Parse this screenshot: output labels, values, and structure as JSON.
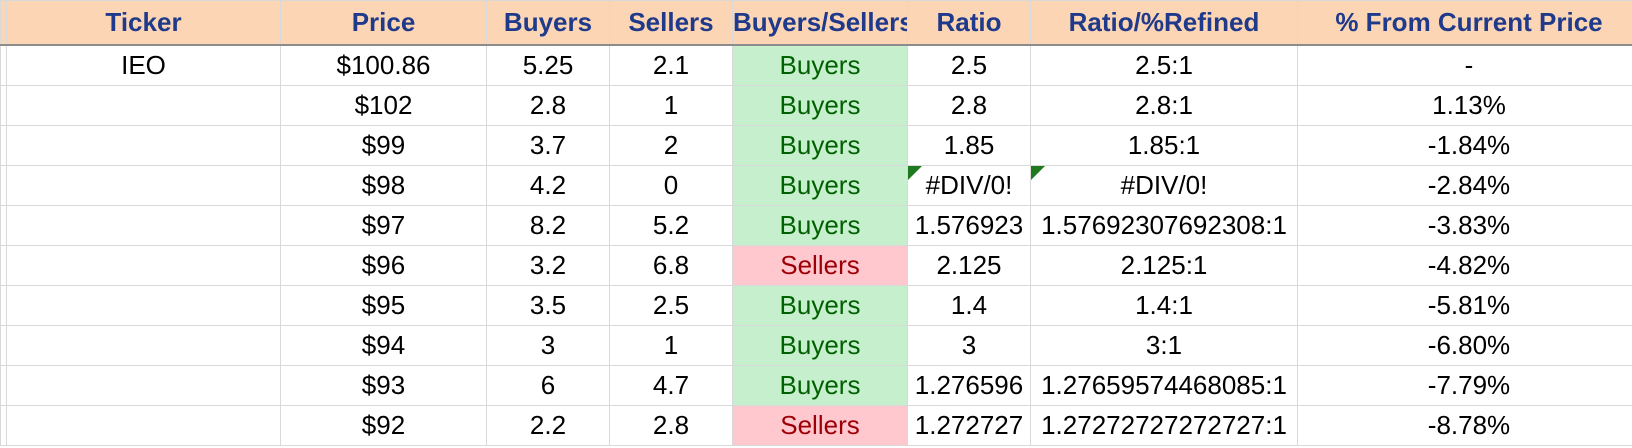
{
  "headers": [
    "Ticker",
    "Price",
    "Buyers",
    "Sellers",
    "Buyers/Sellers",
    "Ratio",
    "Ratio/%Refined",
    "% From Current Price"
  ],
  "rows": [
    {
      "ticker": "IEO",
      "price": "$100.86",
      "buyers": "5.25",
      "sellers": "2.1",
      "side": "Buyers",
      "ratio": "2.5",
      "refined": "2.5:1",
      "pct": "-",
      "error": false
    },
    {
      "ticker": "",
      "price": "$102",
      "buyers": "2.8",
      "sellers": "1",
      "side": "Buyers",
      "ratio": "2.8",
      "refined": "2.8:1",
      "pct": "1.13%",
      "error": false
    },
    {
      "ticker": "",
      "price": "$99",
      "buyers": "3.7",
      "sellers": "2",
      "side": "Buyers",
      "ratio": "1.85",
      "refined": "1.85:1",
      "pct": "-1.84%",
      "error": false
    },
    {
      "ticker": "",
      "price": "$98",
      "buyers": "4.2",
      "sellers": "0",
      "side": "Buyers",
      "ratio": "#DIV/0!",
      "refined": "#DIV/0!",
      "pct": "-2.84%",
      "error": true
    },
    {
      "ticker": "",
      "price": "$97",
      "buyers": "8.2",
      "sellers": "5.2",
      "side": "Buyers",
      "ratio": "1.576923",
      "refined": "1.57692307692308:1",
      "pct": "-3.83%",
      "error": false
    },
    {
      "ticker": "",
      "price": "$96",
      "buyers": "3.2",
      "sellers": "6.8",
      "side": "Sellers",
      "ratio": "2.125",
      "refined": "2.125:1",
      "pct": "-4.82%",
      "error": false
    },
    {
      "ticker": "",
      "price": "$95",
      "buyers": "3.5",
      "sellers": "2.5",
      "side": "Buyers",
      "ratio": "1.4",
      "refined": "1.4:1",
      "pct": "-5.81%",
      "error": false
    },
    {
      "ticker": "",
      "price": "$94",
      "buyers": "3",
      "sellers": "1",
      "side": "Buyers",
      "ratio": "3",
      "refined": "3:1",
      "pct": "-6.80%",
      "error": false
    },
    {
      "ticker": "",
      "price": "$93",
      "buyers": "6",
      "sellers": "4.7",
      "side": "Buyers",
      "ratio": "1.276596",
      "refined": "1.27659574468085:1",
      "pct": "-7.79%",
      "error": false
    },
    {
      "ticker": "",
      "price": "$92",
      "buyers": "2.2",
      "sellers": "2.8",
      "side": "Sellers",
      "ratio": "1.272727",
      "refined": "1.27272727272727:1",
      "pct": "-8.78%",
      "error": false
    }
  ],
  "colors": {
    "header_bg": "#fcd5b4",
    "header_text": "#1f3a8a",
    "buyers_bg": "#c6efce",
    "buyers_text": "#006100",
    "sellers_bg": "#ffc7ce",
    "sellers_text": "#9c0006",
    "error_flag": "#1f7a1f"
  }
}
